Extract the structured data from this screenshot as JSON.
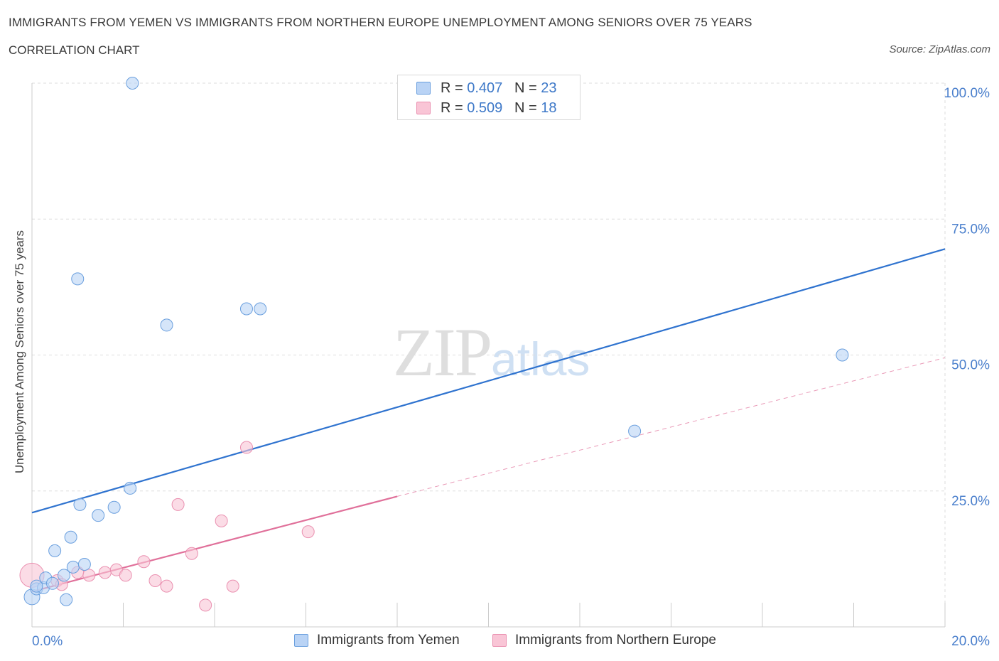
{
  "header": {
    "title": "IMMIGRANTS FROM YEMEN VS IMMIGRANTS FROM NORTHERN EUROPE UNEMPLOYMENT AMONG SENIORS OVER 75 YEARS",
    "subtitle": "CORRELATION CHART",
    "source": "Source: ZipAtlas.com"
  },
  "watermark": {
    "zip": "ZIP",
    "atlas": "atlas"
  },
  "colors": {
    "yemen_fill": "#b9d3f5",
    "yemen_stroke": "#6a9fde",
    "yemen_line": "#2f73cf",
    "neur_fill": "#f9c5d6",
    "neur_stroke": "#ea90b0",
    "neur_line": "#e0709a",
    "tick_label": "#4a7fcc",
    "grid": "#dddddd"
  },
  "stats": [
    {
      "r_label": "R = ",
      "r_value": "0.407",
      "n_label": "N = ",
      "n_value": "23",
      "swatch": "#b9d3f5"
    },
    {
      "r_label": "R = ",
      "r_value": "0.509",
      "n_label": "N = ",
      "n_value": "18",
      "swatch": "#f9c5d6"
    }
  ],
  "legend": [
    {
      "label": "Immigrants from Yemen",
      "swatch": "#b9d3f5"
    },
    {
      "label": "Immigrants from Northern Europe",
      "swatch": "#f9c5d6"
    }
  ],
  "chart_data": {
    "type": "scatter",
    "title": "IMMIGRANTS FROM YEMEN VS IMMIGRANTS FROM NORTHERN EUROPE UNEMPLOYMENT AMONG SENIORS OVER 75 YEARS",
    "xlabel": "",
    "ylabel": "Unemployment Among Seniors over 75 years",
    "xlim": [
      0,
      20
    ],
    "ylim": [
      0,
      100
    ],
    "x_tick_labels": [
      "0.0%",
      "20.0%"
    ],
    "y_tick_labels": [
      {
        "value": 100,
        "label": "100.0%"
      },
      {
        "value": 75,
        "label": "75.0%"
      },
      {
        "value": 50,
        "label": "50.0%"
      },
      {
        "value": 25,
        "label": "25.0%"
      }
    ],
    "grid": true,
    "series": [
      {
        "name": "Immigrants from Yemen",
        "points": [
          [
            0.0,
            5.5
          ],
          [
            0.1,
            7.0
          ],
          [
            0.25,
            7.2
          ],
          [
            0.3,
            9.0
          ],
          [
            0.45,
            8.0
          ],
          [
            0.5,
            14.0
          ],
          [
            0.7,
            9.5
          ],
          [
            0.75,
            5.0
          ],
          [
            0.85,
            16.5
          ],
          [
            0.9,
            11.0
          ],
          [
            1.05,
            22.5
          ],
          [
            1.15,
            11.5
          ],
          [
            1.45,
            20.5
          ],
          [
            1.8,
            22.0
          ],
          [
            2.15,
            25.5
          ],
          [
            0.1,
            7.5
          ],
          [
            1.0,
            64.0
          ],
          [
            2.2,
            100.0
          ],
          [
            2.95,
            55.5
          ],
          [
            4.7,
            58.5
          ],
          [
            5.0,
            58.5
          ],
          [
            13.2,
            36.0
          ],
          [
            17.75,
            50.0
          ]
        ],
        "trend": {
          "x": [
            0,
            20
          ],
          "y": [
            21.0,
            69.5
          ]
        }
      },
      {
        "name": "Immigrants from Northern Europe",
        "points": [
          [
            0.0,
            9.5
          ],
          [
            0.55,
            8.5
          ],
          [
            1.0,
            10.0
          ],
          [
            1.25,
            9.5
          ],
          [
            1.6,
            10.0
          ],
          [
            1.85,
            10.5
          ],
          [
            2.05,
            9.5
          ],
          [
            2.45,
            12.0
          ],
          [
            2.7,
            8.5
          ],
          [
            2.95,
            7.5
          ],
          [
            3.2,
            22.5
          ],
          [
            3.5,
            13.5
          ],
          [
            3.8,
            4.0
          ],
          [
            4.15,
            19.5
          ],
          [
            4.4,
            7.5
          ],
          [
            4.7,
            33.0
          ],
          [
            6.05,
            17.5
          ],
          [
            0.65,
            7.8
          ]
        ],
        "trend": {
          "x": [
            0,
            8
          ],
          "y": [
            6.5,
            24.0
          ]
        },
        "trend_extension": {
          "x": [
            8,
            20
          ],
          "y": [
            24.0,
            49.5
          ]
        }
      }
    ]
  }
}
